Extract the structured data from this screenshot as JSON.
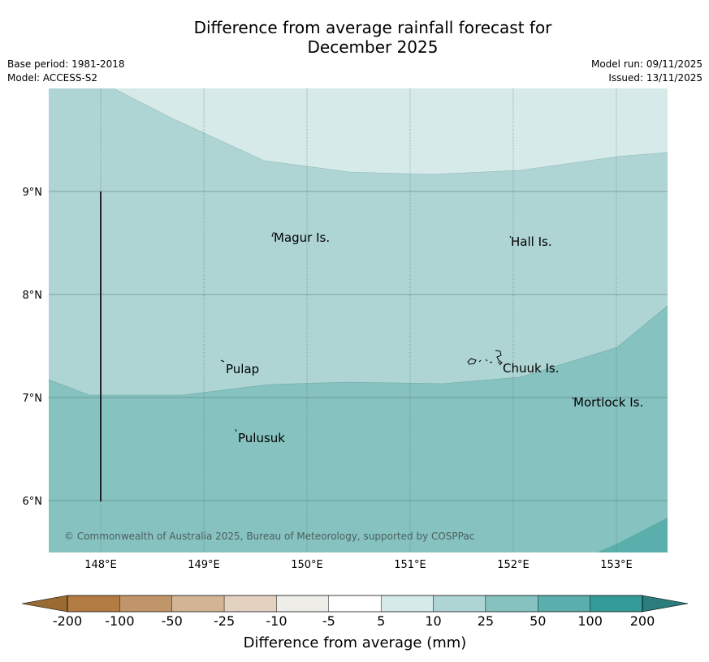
{
  "title": {
    "line1": "Difference from average rainfall forecast for",
    "line2": "December 2025"
  },
  "meta": {
    "base_period": "Base period: 1981-2018",
    "model": "Model: ACCESS-S2",
    "model_run": "Model run: 09/11/2025",
    "issued": "Issued: 13/11/2025"
  },
  "map": {
    "lat_labels": [
      "9°N",
      "8°N",
      "7°N",
      "6°N"
    ],
    "lon_labels": [
      "148°E",
      "149°E",
      "150°E",
      "151°E",
      "152°E",
      "153°E"
    ],
    "places": [
      {
        "name": "Magur Is.",
        "lon": 149.67,
        "lat": 8.58
      },
      {
        "name": "Hall Is.",
        "lon": 151.98,
        "lat": 8.53
      },
      {
        "name": "Pulap",
        "lon": 149.18,
        "lat": 7.36
      },
      {
        "name": "Chuuk Is.",
        "lon": 151.85,
        "lat": 7.4
      },
      {
        "name": "Mortlock Is.",
        "lon": 152.58,
        "lat": 7.01
      },
      {
        "name": "Pulusuk",
        "lon": 149.3,
        "lat": 6.69
      }
    ],
    "copyright": "© Commonwealth of Australia 2025, Bureau of Meteorology, supported by COSPPac"
  },
  "legend": {
    "title": "Difference from average (mm)",
    "ticks": [
      "-200",
      "-100",
      "-50",
      "-25",
      "-10",
      "-5",
      "5",
      "10",
      "25",
      "50",
      "100",
      "200"
    ],
    "colors": {
      "under": "#9a6a33",
      "bins": [
        "#b17b42",
        "#c1956a",
        "#d3b494",
        "#e4d2c1",
        "#efede8",
        "#ffffff",
        "#d6eae9",
        "#aed5d4",
        "#85c2c0",
        "#5aaeab",
        "#359b98"
      ],
      "over": "#2a7d7a"
    }
  },
  "colors": {
    "band_5_10": "#d6eae9",
    "band_10_25": "#aed5d4",
    "band_25_50": "#85c2c0",
    "band_50_100": "#5aaeab"
  }
}
